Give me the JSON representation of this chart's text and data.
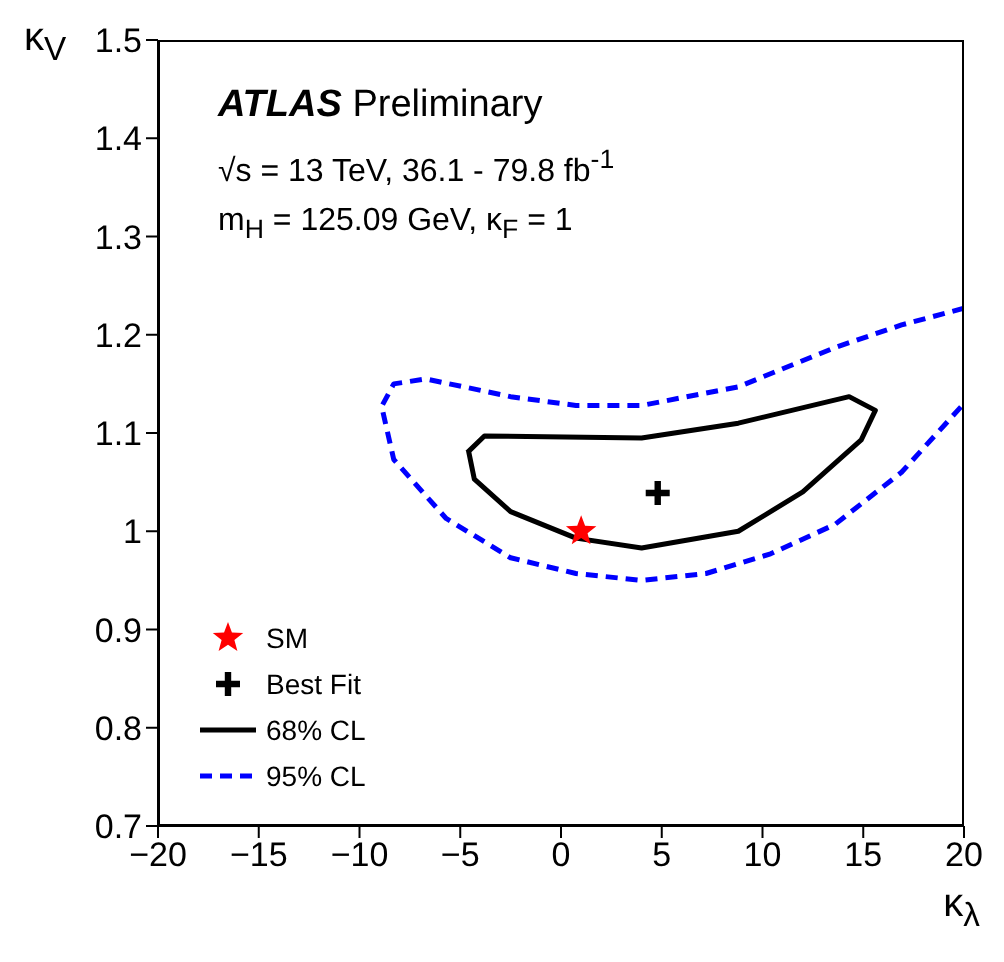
{
  "chart_data": {
    "type": "line",
    "xlabel": "κ$_{λ}$",
    "ylabel": "κ$_{V}$",
    "annotations": [
      "ATLAS Preliminary",
      "√s = 13 TeV, 36.1 - 79.8 fb$^{-1}$",
      "m$_{H}$ = 125.09 GeV, κ$_{F}$ = 1"
    ],
    "xlim": [
      -20,
      20
    ],
    "xticks": [
      {
        "value": -20,
        "label": "−20"
      },
      {
        "value": -15,
        "label": "−15"
      },
      {
        "value": -10,
        "label": "−10"
      },
      {
        "value": -5,
        "label": "−5"
      },
      0,
      5,
      10,
      15,
      20
    ],
    "ylim": [
      0.7,
      1.5
    ],
    "yticks": [
      0.7,
      0.8,
      0.9,
      1,
      1.1,
      1.2,
      1.3,
      1.4,
      1.5
    ],
    "grid": false,
    "legend": "bottom left",
    "series": [
      {
        "name": "SM",
        "type": "scatter",
        "marker": "star",
        "color": "#ff0000",
        "x": [
          1
        ],
        "values": [
          1
        ]
      },
      {
        "name": "Best Fit",
        "type": "scatter",
        "marker": "cross",
        "color": "#000000",
        "x": [
          4.8
        ],
        "values": [
          1.039
        ]
      },
      {
        "name": "68% CL",
        "line_style": "solid",
        "color": "#000000",
        "x": [
          -4.65,
          -3.8,
          4.0,
          8.8,
          14.3,
          15.6,
          14.9,
          12.0,
          8.8,
          4.0,
          0.74,
          -2.5,
          -4.3,
          -4.6
        ],
        "values": [
          1.08,
          1.097,
          1.095,
          1.11,
          1.137,
          1.123,
          1.093,
          1.04,
          1.0,
          0.983,
          0.993,
          1.02,
          1.053,
          1.083
        ]
      },
      {
        "name": "95% CL",
        "line_style": "dashed",
        "color": "#0000ff",
        "x": [
          20,
          16.9,
          13.6,
          8.8,
          4.0,
          0.74,
          -2.5,
          -6.7,
          -8.3,
          -8.9,
          -8.3,
          -5.7,
          -2.5,
          0.74,
          4.0,
          7.2,
          10.4,
          13.6,
          16.9,
          20
        ],
        "values": [
          1.227,
          1.21,
          1.187,
          1.147,
          1.128,
          1.128,
          1.137,
          1.155,
          1.15,
          1.127,
          1.073,
          1.013,
          0.973,
          0.957,
          0.95,
          0.957,
          0.977,
          1.007,
          1.06,
          1.13
        ]
      }
    ]
  }
}
